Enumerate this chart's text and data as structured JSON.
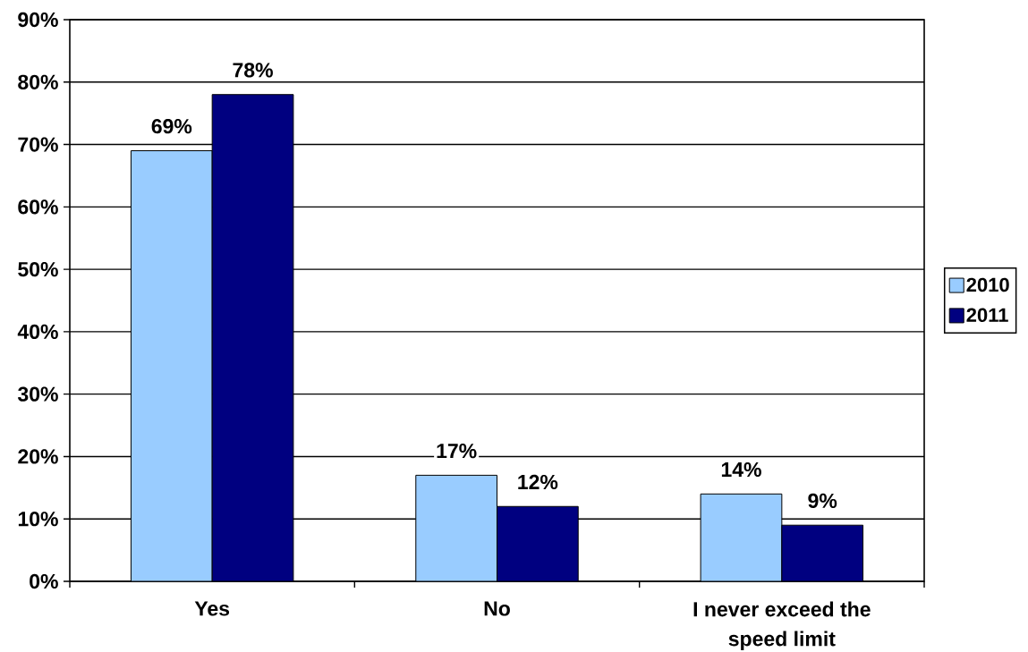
{
  "chart_data": {
    "type": "bar",
    "categories": [
      "Yes",
      "No",
      "I never exceed the speed limit"
    ],
    "series": [
      {
        "name": "2010",
        "color": "#99ccff",
        "values": [
          69,
          17,
          14
        ],
        "value_labels": [
          "69%",
          "17%",
          "14%"
        ]
      },
      {
        "name": "2011",
        "color": "#000080",
        "values": [
          78,
          12,
          9
        ],
        "value_labels": [
          "78%",
          "12%",
          "9%"
        ]
      }
    ],
    "ylim": [
      0,
      90
    ],
    "yticks": [
      {
        "value": 0,
        "label": "0%"
      },
      {
        "value": 10,
        "label": "10%"
      },
      {
        "value": 20,
        "label": "20%"
      },
      {
        "value": 30,
        "label": "30%"
      },
      {
        "value": 40,
        "label": "40%"
      },
      {
        "value": 50,
        "label": "50%"
      },
      {
        "value": 60,
        "label": "60%"
      },
      {
        "value": 70,
        "label": "70%"
      },
      {
        "value": 80,
        "label": "80%"
      },
      {
        "value": 90,
        "label": "90%"
      }
    ],
    "grid": "y",
    "legend": "right"
  }
}
